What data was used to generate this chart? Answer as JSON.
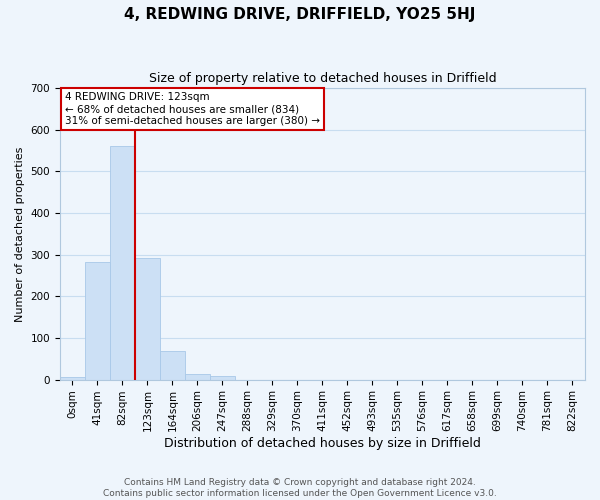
{
  "title": "4, REDWING DRIVE, DRIFFIELD, YO25 5HJ",
  "subtitle": "Size of property relative to detached houses in Driffield",
  "xlabel": "Distribution of detached houses by size in Driffield",
  "ylabel": "Number of detached properties",
  "bar_labels": [
    "0sqm",
    "41sqm",
    "82sqm",
    "123sqm",
    "164sqm",
    "206sqm",
    "247sqm",
    "288sqm",
    "329sqm",
    "370sqm",
    "411sqm",
    "452sqm",
    "493sqm",
    "535sqm",
    "576sqm",
    "617sqm",
    "658sqm",
    "699sqm",
    "740sqm",
    "781sqm",
    "822sqm"
  ],
  "bar_values": [
    7,
    282,
    560,
    293,
    68,
    14,
    9,
    0,
    0,
    0,
    0,
    0,
    0,
    0,
    0,
    0,
    0,
    0,
    0,
    0,
    0
  ],
  "bar_color": "#cce0f5",
  "bar_edge_color": "#a8c8e8",
  "vline_x": 2.5,
  "vline_color": "#cc0000",
  "ylim": [
    0,
    700
  ],
  "yticks": [
    0,
    100,
    200,
    300,
    400,
    500,
    600,
    700
  ],
  "annotation_title": "4 REDWING DRIVE: 123sqm",
  "annotation_line1": "← 68% of detached houses are smaller (834)",
  "annotation_line2": "31% of semi-detached houses are larger (380) →",
  "annotation_box_color": "#ffffff",
  "annotation_box_edge": "#cc0000",
  "footer1": "Contains HM Land Registry data © Crown copyright and database right 2024.",
  "footer2": "Contains public sector information licensed under the Open Government Licence v3.0.",
  "grid_color": "#c8ddf0",
  "background_color": "#eef5fc",
  "title_fontsize": 11,
  "subtitle_fontsize": 9,
  "xlabel_fontsize": 9,
  "ylabel_fontsize": 8,
  "tick_fontsize": 7.5,
  "footer_fontsize": 6.5
}
